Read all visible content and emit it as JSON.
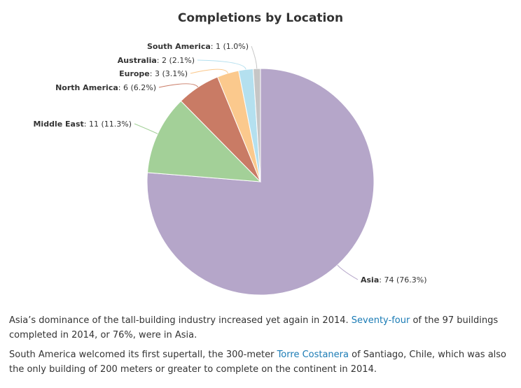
{
  "chart_data": {
    "type": "pie",
    "title": "Completions by Location",
    "total": 97,
    "slices": [
      {
        "name": "Asia",
        "value": 74,
        "percent_label": "76.3%",
        "color": "#b5a6c9"
      },
      {
        "name": "Middle East",
        "value": 11,
        "percent_label": "11.3%",
        "color": "#a3d098"
      },
      {
        "name": "North America",
        "value": 6,
        "percent_label": "6.2%",
        "color": "#c97b65"
      },
      {
        "name": "Europe",
        "value": 3,
        "percent_label": "3.1%",
        "color": "#fbc98d"
      },
      {
        "name": "Australia",
        "value": 2,
        "percent_label": "2.1%",
        "color": "#b4e0ef"
      },
      {
        "name": "South America",
        "value": 1,
        "percent_label": "1.0%",
        "color": "#c6c6c6"
      }
    ]
  },
  "paragraphs": {
    "p1": {
      "before": "Asia’s dominance of the tall-building industry increased yet again in 2014. ",
      "link": "Seventy-four",
      "after": " of the 97 buildings completed in 2014, or 76%, were in Asia."
    },
    "p2": {
      "before": "South America welcomed its first supertall, the 300-meter ",
      "link": "Torre Costanera",
      "after": " of Santiago, Chile, which was also the only building of 200 meters or greater to complete on the continent in 2014."
    }
  }
}
